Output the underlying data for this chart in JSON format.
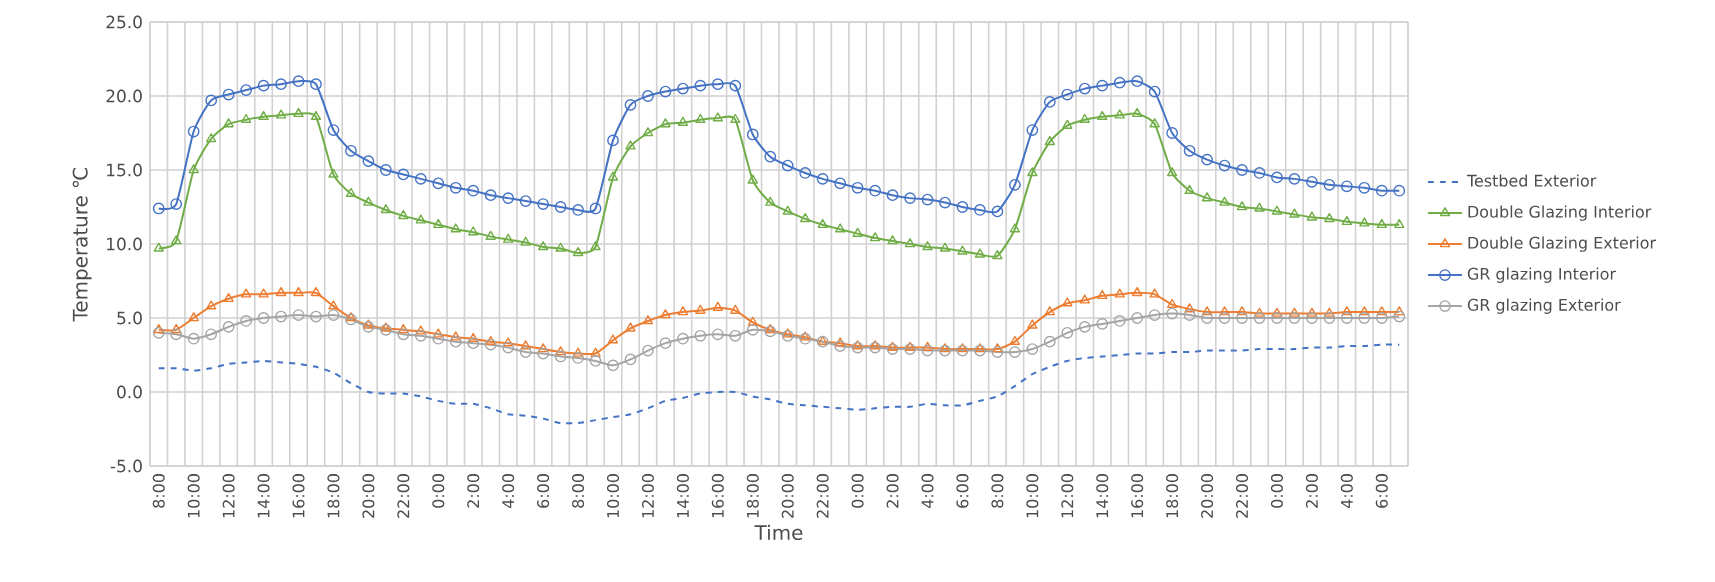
{
  "chart_data": {
    "type": "line",
    "xlabel": "Time",
    "ylabel": "Temperature ℃",
    "categories": [
      "8:00",
      null,
      "10:00",
      null,
      "12:00",
      null,
      "14:00",
      null,
      "16:00",
      null,
      "18:00",
      null,
      "20:00",
      null,
      "22:00",
      null,
      "0:00",
      null,
      "2:00",
      null,
      "4:00",
      null,
      "6:00",
      null,
      "8:00",
      null,
      "10:00",
      null,
      "12:00",
      null,
      "14:00",
      null,
      "16:00",
      null,
      "18:00",
      null,
      "20:00",
      null,
      "22:00",
      null,
      "0:00",
      null,
      "2:00",
      null,
      "4:00",
      null,
      "6:00",
      null,
      "8:00",
      null,
      "10:00",
      null,
      "12:00",
      null,
      "14:00",
      null,
      "16:00",
      null,
      "18:00",
      null,
      "20:00",
      null,
      "22:00",
      null,
      "0:00",
      null,
      "2:00",
      null,
      "4:00",
      null,
      "6:00",
      null
    ],
    "ylim": [
      -5,
      25
    ],
    "yticks": [
      {
        "value": -5,
        "label": "-5.0"
      },
      {
        "value": 0,
        "label": "0.0"
      },
      {
        "value": 5,
        "label": "5.0"
      },
      {
        "value": 10,
        "label": "10.0"
      },
      {
        "value": 15,
        "label": "15.0"
      },
      {
        "value": 20,
        "label": "20.0"
      },
      {
        "value": 25,
        "label": "25.0"
      }
    ],
    "grid": true,
    "legend": "right",
    "series": [
      {
        "name": "Testbed Exterior",
        "color": "#4472c4",
        "marker": "none",
        "line_style": "dashed",
        "values": [
          1.6,
          1.6,
          1.45,
          1.6,
          1.9,
          2.0,
          2.1,
          2.0,
          1.9,
          1.7,
          1.3,
          0.6,
          0.0,
          -0.1,
          -0.1,
          -0.3,
          -0.6,
          -0.8,
          -0.8,
          -1.1,
          -1.5,
          -1.6,
          -1.8,
          -2.1,
          -2.1,
          -1.9,
          -1.7,
          -1.5,
          -1.1,
          -0.6,
          -0.4,
          -0.1,
          0.0,
          0.0,
          -0.3,
          -0.5,
          -0.8,
          -0.9,
          -1.0,
          -1.1,
          -1.2,
          -1.1,
          -1.0,
          -1.0,
          -0.8,
          -0.9,
          -0.9,
          -0.6,
          -0.3,
          0.4,
          1.2,
          1.7,
          2.1,
          2.3,
          2.4,
          2.5,
          2.6,
          2.6,
          2.7,
          2.7,
          2.8,
          2.8,
          2.8,
          2.9,
          2.9,
          2.9,
          3.0,
          3.0,
          3.1,
          3.1,
          3.2,
          3.2
        ]
      },
      {
        "name": "Double Glazing Interior",
        "color": "#70ad47",
        "marker": "triangle",
        "line_style": "solid",
        "values": [
          9.7,
          10.2,
          15.0,
          17.1,
          18.1,
          18.4,
          18.6,
          18.7,
          18.8,
          18.6,
          14.7,
          13.4,
          12.8,
          12.3,
          11.9,
          11.6,
          11.3,
          11.0,
          10.8,
          10.5,
          10.3,
          10.1,
          9.8,
          9.7,
          9.4,
          9.8,
          14.5,
          16.6,
          17.5,
          18.1,
          18.2,
          18.4,
          18.5,
          18.4,
          14.3,
          12.8,
          12.2,
          11.7,
          11.3,
          11.0,
          10.7,
          10.4,
          10.2,
          10.0,
          9.8,
          9.7,
          9.5,
          9.3,
          9.2,
          11.0,
          14.8,
          16.9,
          18.0,
          18.4,
          18.6,
          18.7,
          18.8,
          18.1,
          14.8,
          13.6,
          13.1,
          12.8,
          12.5,
          12.4,
          12.2,
          12.0,
          11.8,
          11.7,
          11.5,
          11.4,
          11.3,
          11.3
        ]
      },
      {
        "name": "Double Glazing Exterior",
        "color": "#ed7d31",
        "marker": "triangle",
        "line_style": "solid",
        "values": [
          4.2,
          4.2,
          5.0,
          5.8,
          6.3,
          6.6,
          6.6,
          6.7,
          6.7,
          6.7,
          5.8,
          5.0,
          4.5,
          4.3,
          4.2,
          4.1,
          3.9,
          3.7,
          3.6,
          3.4,
          3.3,
          3.1,
          2.9,
          2.7,
          2.6,
          2.6,
          3.5,
          4.3,
          4.8,
          5.2,
          5.4,
          5.5,
          5.7,
          5.5,
          4.7,
          4.2,
          3.9,
          3.7,
          3.4,
          3.3,
          3.1,
          3.1,
          3.0,
          3.0,
          3.0,
          2.9,
          2.9,
          2.9,
          2.9,
          3.4,
          4.5,
          5.4,
          6.0,
          6.2,
          6.5,
          6.6,
          6.7,
          6.6,
          5.9,
          5.6,
          5.4,
          5.4,
          5.4,
          5.3,
          5.3,
          5.3,
          5.3,
          5.3,
          5.4,
          5.4,
          5.4,
          5.4
        ]
      },
      {
        "name": "GR glazing Interior",
        "color": "#4472c4",
        "marker": "circle",
        "line_style": "solid",
        "values": [
          12.4,
          12.7,
          17.6,
          19.7,
          20.1,
          20.4,
          20.7,
          20.8,
          21.0,
          20.8,
          17.7,
          16.3,
          15.6,
          15.0,
          14.7,
          14.4,
          14.1,
          13.8,
          13.6,
          13.3,
          13.1,
          12.9,
          12.7,
          12.5,
          12.3,
          12.4,
          17.0,
          19.4,
          20.0,
          20.3,
          20.5,
          20.7,
          20.8,
          20.7,
          17.4,
          15.9,
          15.3,
          14.8,
          14.4,
          14.1,
          13.8,
          13.6,
          13.3,
          13.1,
          13.0,
          12.8,
          12.5,
          12.3,
          12.2,
          14.0,
          17.7,
          19.6,
          20.1,
          20.5,
          20.7,
          20.9,
          21.0,
          20.3,
          17.5,
          16.3,
          15.7,
          15.3,
          15.0,
          14.8,
          14.5,
          14.4,
          14.2,
          14.0,
          13.9,
          13.8,
          13.6,
          13.6
        ]
      },
      {
        "name": "GR glazing Exterior",
        "color": "#a5a5a5",
        "marker": "circle",
        "line_style": "solid",
        "values": [
          4.0,
          3.9,
          3.6,
          3.9,
          4.4,
          4.8,
          5.0,
          5.1,
          5.2,
          5.1,
          5.2,
          4.9,
          4.4,
          4.2,
          3.9,
          3.8,
          3.6,
          3.4,
          3.3,
          3.2,
          3.0,
          2.7,
          2.6,
          2.4,
          2.3,
          2.1,
          1.8,
          2.2,
          2.8,
          3.3,
          3.6,
          3.8,
          3.9,
          3.8,
          4.2,
          4.1,
          3.8,
          3.6,
          3.4,
          3.1,
          3.0,
          3.0,
          2.9,
          2.9,
          2.8,
          2.8,
          2.8,
          2.8,
          2.7,
          2.7,
          2.9,
          3.4,
          4.0,
          4.4,
          4.6,
          4.8,
          5.0,
          5.2,
          5.3,
          5.2,
          5.0,
          5.0,
          5.0,
          5.0,
          5.0,
          5.0,
          5.0,
          5.0,
          5.0,
          5.0,
          5.0,
          5.1
        ]
      }
    ]
  }
}
